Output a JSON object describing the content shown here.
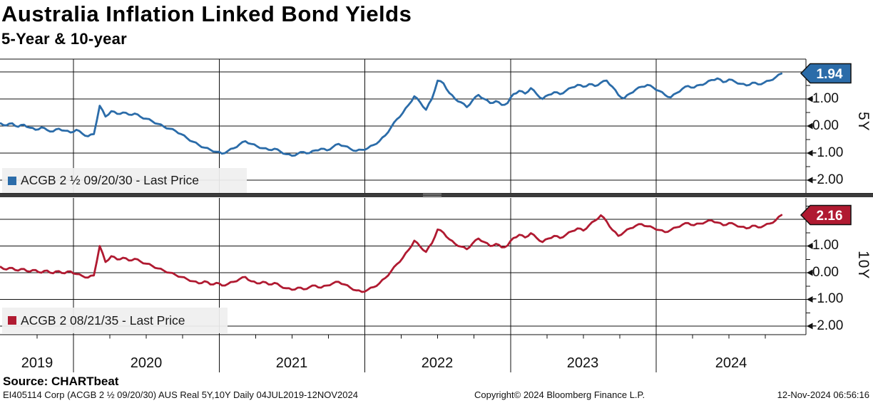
{
  "header": {
    "title": "Australia Inflation Linked Bond Yields",
    "subtitle": "5-Year & 10-year"
  },
  "source": "Source: CHARTbeat",
  "footer": {
    "left": "EI405114 Corp (ACGB 2 ½  09/20/30) AUS Real 5Y,10Y  Daily 04JUL2019-12NOV2024",
    "center": "Copyright© 2024 Bloomberg Finance L.P.",
    "right": "12-Nov-2024 06:56:16"
  },
  "colors": {
    "line_5y": "#2B6CA9",
    "line_10y": "#B01A31",
    "grid": "#111111",
    "legend_bg": "#efefef",
    "separator": "#3b3b3b"
  },
  "chart_data": {
    "type": "line",
    "title": "Australia Inflation Linked Bond Yields",
    "subtitle": "5-Year & 10-year",
    "grid": true,
    "x_unit": "decimal_year",
    "x_range": [
      2019.5,
      2024.87
    ],
    "x_tick_labels": [
      "2019",
      "2020",
      "2021",
      "2022",
      "2023",
      "2024"
    ],
    "x": [
      2019.5,
      2019.54,
      2019.58,
      2019.62,
      2019.66,
      2019.7,
      2019.74,
      2019.78,
      2019.82,
      2019.86,
      2019.9,
      2019.94,
      2019.98,
      2020.02,
      2020.06,
      2020.1,
      2020.14,
      2020.18,
      2020.22,
      2020.26,
      2020.3,
      2020.34,
      2020.38,
      2020.42,
      2020.46,
      2020.5,
      2020.54,
      2020.58,
      2020.62,
      2020.66,
      2020.7,
      2020.74,
      2020.78,
      2020.82,
      2020.86,
      2020.9,
      2020.94,
      2020.98,
      2021.02,
      2021.06,
      2021.1,
      2021.14,
      2021.18,
      2021.22,
      2021.26,
      2021.3,
      2021.34,
      2021.38,
      2021.42,
      2021.46,
      2021.5,
      2021.54,
      2021.58,
      2021.62,
      2021.66,
      2021.7,
      2021.74,
      2021.78,
      2021.82,
      2021.86,
      2021.9,
      2021.94,
      2021.98,
      2022.02,
      2022.06,
      2022.1,
      2022.14,
      2022.18,
      2022.22,
      2022.26,
      2022.3,
      2022.34,
      2022.38,
      2022.42,
      2022.46,
      2022.5,
      2022.54,
      2022.58,
      2022.62,
      2022.66,
      2022.7,
      2022.74,
      2022.78,
      2022.82,
      2022.86,
      2022.9,
      2022.94,
      2022.98,
      2023.02,
      2023.06,
      2023.1,
      2023.14,
      2023.18,
      2023.22,
      2023.26,
      2023.3,
      2023.34,
      2023.38,
      2023.42,
      2023.46,
      2023.5,
      2023.54,
      2023.58,
      2023.62,
      2023.66,
      2023.7,
      2023.74,
      2023.78,
      2023.82,
      2023.86,
      2023.9,
      2023.94,
      2023.98,
      2024.02,
      2024.06,
      2024.1,
      2024.14,
      2024.18,
      2024.22,
      2024.26,
      2024.3,
      2024.34,
      2024.38,
      2024.42,
      2024.46,
      2024.5,
      2024.54,
      2024.58,
      2024.62,
      2024.66,
      2024.7,
      2024.74,
      2024.78,
      2024.82,
      2024.86
    ],
    "panels": [
      {
        "id": "5Y",
        "axis_label": "5Y",
        "series_name": "ACGB 2 ½ 09/20/30",
        "legend": "ACGB 2 ½  09/20/30 - Last Price",
        "last_price": "1.94",
        "color": "#2B6CA9",
        "ylim": [
          -2.47,
          2.47
        ],
        "y_tick_labels": [
          "1.00",
          "0.00",
          "-1.00",
          "-2.00"
        ],
        "y_tick_values": [
          1,
          0,
          -1,
          -2
        ],
        "values": [
          0.1,
          0.02,
          0.1,
          -0.03,
          0.05,
          -0.06,
          -0.14,
          -0.05,
          -0.15,
          -0.2,
          -0.1,
          -0.17,
          -0.24,
          -0.14,
          -0.28,
          -0.38,
          -0.3,
          0.75,
          0.35,
          0.55,
          0.45,
          0.5,
          0.42,
          0.46,
          0.34,
          0.27,
          0.18,
          0.08,
          -0.02,
          -0.1,
          -0.18,
          -0.3,
          -0.45,
          -0.58,
          -0.7,
          -0.8,
          -0.88,
          -0.95,
          -1.02,
          -0.92,
          -0.82,
          -0.68,
          -0.56,
          -0.66,
          -0.75,
          -0.82,
          -0.88,
          -0.84,
          -0.94,
          -1.04,
          -1.1,
          -1.02,
          -0.96,
          -1.0,
          -0.9,
          -0.84,
          -0.9,
          -0.78,
          -0.66,
          -0.74,
          -0.84,
          -0.92,
          -0.88,
          -0.82,
          -0.7,
          -0.56,
          -0.35,
          -0.05,
          0.25,
          0.48,
          0.78,
          1.1,
          0.88,
          0.6,
          1.0,
          1.68,
          1.58,
          1.22,
          1.0,
          0.88,
          0.7,
          0.95,
          1.15,
          1.0,
          0.85,
          0.92,
          0.78,
          0.85,
          1.18,
          1.3,
          1.2,
          1.4,
          1.18,
          1.0,
          1.15,
          1.25,
          1.18,
          1.3,
          1.42,
          1.52,
          1.45,
          1.55,
          1.48,
          1.6,
          1.68,
          1.45,
          1.15,
          1.02,
          1.2,
          1.35,
          1.45,
          1.52,
          1.42,
          1.3,
          1.15,
          1.06,
          1.22,
          1.38,
          1.48,
          1.42,
          1.52,
          1.58,
          1.7,
          1.76,
          1.62,
          1.72,
          1.64,
          1.56,
          1.5,
          1.6,
          1.54,
          1.6,
          1.68,
          1.8,
          1.94
        ]
      },
      {
        "id": "10Y",
        "axis_label": "10Y",
        "series_name": "ACGB 2 08/21/35",
        "legend": "ACGB 2 08/21/35 - Last Price",
        "last_price": "2.16",
        "color": "#B01A31",
        "ylim": [
          -2.32,
          2.79
        ],
        "y_tick_labels": [
          "1.00",
          "0.00",
          "-1.00",
          "-2.00"
        ],
        "y_tick_values": [
          1,
          0,
          -1,
          -2
        ],
        "values": [
          0.22,
          0.12,
          0.18,
          0.08,
          0.14,
          0.04,
          0.1,
          0.0,
          0.08,
          -0.02,
          0.06,
          -0.02,
          0.05,
          -0.05,
          -0.12,
          -0.18,
          -0.1,
          1.0,
          0.4,
          0.62,
          0.5,
          0.56,
          0.46,
          0.52,
          0.42,
          0.34,
          0.26,
          0.16,
          0.08,
          0.0,
          -0.08,
          -0.16,
          -0.24,
          -0.32,
          -0.4,
          -0.32,
          -0.44,
          -0.38,
          -0.48,
          -0.42,
          -0.34,
          -0.24,
          -0.16,
          -0.32,
          -0.4,
          -0.34,
          -0.44,
          -0.38,
          -0.5,
          -0.58,
          -0.64,
          -0.56,
          -0.62,
          -0.54,
          -0.48,
          -0.56,
          -0.48,
          -0.4,
          -0.34,
          -0.44,
          -0.56,
          -0.66,
          -0.72,
          -0.64,
          -0.54,
          -0.4,
          -0.2,
          0.05,
          0.32,
          0.55,
          0.85,
          1.2,
          0.98,
          0.78,
          1.1,
          1.62,
          1.5,
          1.25,
          1.08,
          0.98,
          0.88,
          1.1,
          1.28,
          1.15,
          1.0,
          1.08,
          0.95,
          1.02,
          1.3,
          1.42,
          1.32,
          1.48,
          1.3,
          1.15,
          1.28,
          1.38,
          1.3,
          1.42,
          1.55,
          1.66,
          1.58,
          1.78,
          1.95,
          2.15,
          1.92,
          1.6,
          1.38,
          1.52,
          1.66,
          1.76,
          1.82,
          1.74,
          1.68,
          1.6,
          1.52,
          1.6,
          1.7,
          1.8,
          1.86,
          1.78,
          1.84,
          1.9,
          1.96,
          1.88,
          1.78,
          1.86,
          1.8,
          1.72,
          1.66,
          1.76,
          1.7,
          1.76,
          1.84,
          1.96,
          2.16
        ]
      }
    ]
  }
}
